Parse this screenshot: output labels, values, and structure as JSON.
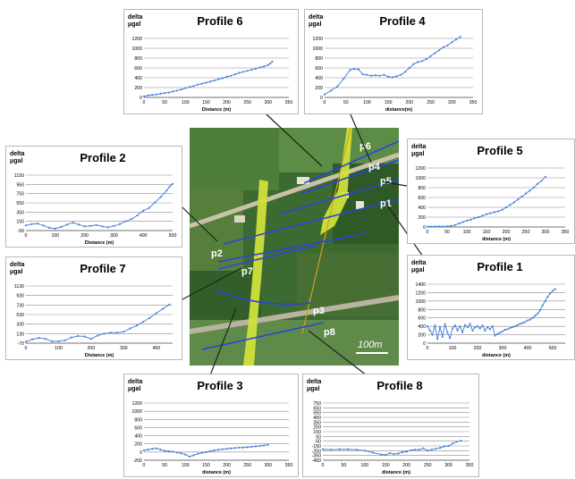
{
  "map": {
    "scale_label": "100m",
    "profile_labels": [
      "p6",
      "p4",
      "p5",
      "p1",
      "p2",
      "p7",
      "p3",
      "p8"
    ]
  },
  "chart_data": [
    {
      "id": "p6",
      "type": "line",
      "title": "Profile 6",
      "ylabel": "delta\nμgal",
      "xlabel": "Distance (m)",
      "xlim": [
        0,
        350
      ],
      "ylim": [
        0,
        1200
      ],
      "xticks": [
        0,
        50,
        100,
        150,
        200,
        250,
        300,
        350
      ],
      "yticks": [
        0,
        200,
        400,
        600,
        800,
        1000,
        1200
      ],
      "series": [
        {
          "x": [
            0,
            10,
            20,
            30,
            40,
            50,
            60,
            70,
            80,
            90,
            100,
            110,
            120,
            130,
            140,
            150,
            160,
            170,
            180,
            190,
            200,
            210,
            220,
            230,
            240,
            250,
            260,
            270,
            280,
            290,
            300,
            305,
            310
          ],
          "y": [
            20,
            40,
            50,
            60,
            75,
            90,
            100,
            120,
            140,
            160,
            190,
            210,
            230,
            260,
            280,
            300,
            320,
            345,
            370,
            390,
            420,
            440,
            470,
            500,
            520,
            540,
            560,
            585,
            610,
            630,
            660,
            690,
            730
          ]
        }
      ],
      "color": "#4a86d6"
    },
    {
      "id": "p4",
      "type": "line",
      "title": "Profile 4",
      "ylabel": "delta\nμgal",
      "xlabel": "distance(m)",
      "xlim": [
        0,
        350
      ],
      "ylim": [
        0,
        1200
      ],
      "xticks": [
        0,
        50,
        100,
        150,
        200,
        250,
        300,
        350
      ],
      "yticks": [
        0,
        200,
        400,
        600,
        800,
        1000,
        1200
      ],
      "series": [
        {
          "x": [
            0,
            15,
            30,
            45,
            60,
            70,
            80,
            90,
            100,
            110,
            120,
            130,
            140,
            150,
            160,
            170,
            180,
            190,
            200,
            210,
            220,
            230,
            240,
            250,
            260,
            270,
            280,
            290,
            300,
            310,
            320
          ],
          "y": [
            60,
            140,
            220,
            380,
            560,
            580,
            570,
            470,
            460,
            440,
            450,
            440,
            460,
            420,
            410,
            430,
            460,
            520,
            600,
            680,
            720,
            740,
            780,
            840,
            900,
            960,
            1020,
            1060,
            1120,
            1180,
            1230
          ]
        }
      ],
      "color": "#4a86d6"
    },
    {
      "id": "p5",
      "type": "line",
      "title": "Profile 5",
      "ylabel": "delta\nμgal",
      "xlabel": "distance (m)",
      "xlim": [
        0,
        350
      ],
      "ylim": [
        0,
        1200
      ],
      "xticks": [
        0,
        50,
        100,
        150,
        200,
        250,
        300,
        350
      ],
      "yticks": [
        0,
        200,
        400,
        600,
        800,
        1000,
        1200
      ],
      "series": [
        {
          "x": [
            0,
            10,
            20,
            30,
            40,
            50,
            60,
            70,
            80,
            90,
            100,
            110,
            120,
            130,
            140,
            150,
            160,
            170,
            180,
            190,
            200,
            210,
            220,
            230,
            240,
            250,
            260,
            270,
            280,
            290,
            300
          ],
          "y": [
            10,
            10,
            10,
            12,
            10,
            15,
            20,
            40,
            70,
            100,
            130,
            150,
            180,
            200,
            230,
            260,
            280,
            300,
            320,
            350,
            400,
            450,
            500,
            560,
            620,
            680,
            740,
            800,
            880,
            940,
            1020
          ]
        }
      ],
      "color": "#4a86d6"
    },
    {
      "id": "p2",
      "type": "line",
      "title": "Profile 2",
      "ylabel": "delta\nμgal",
      "xlabel": "Distance (m)",
      "xlim": [
        0,
        500
      ],
      "ylim": [
        -50,
        1150
      ],
      "xticks": [
        0,
        100,
        200,
        300,
        400,
        500
      ],
      "yticks": [
        -50,
        150,
        350,
        550,
        750,
        950,
        1150
      ],
      "series": [
        {
          "x": [
            0,
            20,
            40,
            60,
            80,
            100,
            120,
            140,
            160,
            180,
            200,
            220,
            240,
            260,
            280,
            300,
            320,
            340,
            360,
            380,
            400,
            420,
            440,
            460,
            480,
            490,
            500
          ],
          "y": [
            60,
            90,
            100,
            60,
            10,
            -10,
            30,
            80,
            120,
            80,
            40,
            50,
            70,
            40,
            20,
            50,
            90,
            150,
            200,
            280,
            380,
            440,
            560,
            680,
            820,
            900,
            960
          ]
        }
      ],
      "color": "#4a86d6"
    },
    {
      "id": "p7",
      "type": "line",
      "title": "Profile 7",
      "ylabel": "delta\nμgal",
      "xlabel": "Distance (m)",
      "xlim": [
        0,
        450
      ],
      "ylim": [
        -70,
        1130
      ],
      "xticks": [
        0,
        100,
        200,
        300,
        400
      ],
      "yticks": [
        -70,
        130,
        330,
        530,
        730,
        930,
        1130
      ],
      "series": [
        {
          "x": [
            0,
            20,
            40,
            60,
            80,
            100,
            120,
            140,
            160,
            180,
            200,
            220,
            240,
            260,
            280,
            300,
            320,
            340,
            360,
            380,
            400,
            420,
            440
          ],
          "y": [
            -40,
            10,
            40,
            20,
            -30,
            -30,
            -10,
            50,
            80,
            70,
            20,
            90,
            130,
            150,
            150,
            170,
            240,
            300,
            380,
            460,
            560,
            650,
            740
          ]
        }
      ],
      "color": "#4a86d6"
    },
    {
      "id": "p1",
      "type": "line",
      "title": "Profile 1",
      "ylabel": "delta\nμgal",
      "xlabel": "distance (m)",
      "xlim": [
        0,
        550
      ],
      "ylim": [
        0,
        1400
      ],
      "xticks": [
        0,
        100,
        200,
        300,
        400,
        500
      ],
      "yticks": [
        0,
        200,
        400,
        600,
        800,
        1000,
        1200,
        1400
      ],
      "series": [
        {
          "x": [
            0,
            10,
            20,
            30,
            40,
            50,
            60,
            70,
            80,
            90,
            100,
            110,
            120,
            130,
            140,
            150,
            160,
            170,
            180,
            190,
            200,
            210,
            220,
            230,
            240,
            250,
            260,
            270,
            280,
            290,
            300,
            310,
            320,
            330,
            340,
            350,
            360,
            370,
            380,
            390,
            400,
            410,
            420,
            430,
            440,
            450,
            460,
            470,
            480,
            490,
            500,
            510
          ],
          "y": [
            400,
            300,
            200,
            420,
            100,
            380,
            150,
            450,
            250,
            120,
            350,
            420,
            300,
            400,
            260,
            430,
            380,
            460,
            300,
            380,
            400,
            350,
            420,
            300,
            380,
            330,
            400,
            180,
            220,
            250,
            280,
            320,
            330,
            360,
            380,
            400,
            430,
            460,
            480,
            500,
            540,
            560,
            600,
            650,
            700,
            780,
            900,
            1000,
            1100,
            1180,
            1240,
            1280
          ]
        }
      ],
      "color": "#4a86d6"
    },
    {
      "id": "p3",
      "type": "line",
      "title": "Profile 3",
      "ylabel": "delta\nμgal",
      "xlabel": "distance (m)",
      "xlim": [
        0,
        350
      ],
      "ylim": [
        -200,
        1200
      ],
      "xticks": [
        0,
        50,
        100,
        150,
        200,
        250,
        300,
        350
      ],
      "yticks": [
        -200,
        0,
        200,
        400,
        600,
        800,
        1000,
        1200
      ],
      "series": [
        {
          "x": [
            0,
            10,
            20,
            30,
            40,
            50,
            60,
            70,
            80,
            90,
            100,
            110,
            120,
            130,
            140,
            150,
            160,
            170,
            180,
            190,
            200,
            210,
            220,
            230,
            240,
            250,
            260,
            270,
            280,
            290,
            300
          ],
          "y": [
            40,
            60,
            80,
            90,
            60,
            30,
            20,
            10,
            -10,
            -30,
            -60,
            -110,
            -80,
            -40,
            -20,
            0,
            20,
            40,
            60,
            70,
            80,
            90,
            100,
            110,
            110,
            120,
            130,
            140,
            150,
            160,
            180
          ]
        }
      ],
      "color": "#4a86d6"
    },
    {
      "id": "p8",
      "type": "line",
      "title": "Profile 8",
      "ylabel": "delta\nμgal",
      "xlabel": "distance (m)",
      "xlim": [
        0,
        350
      ],
      "ylim": [
        -450,
        750
      ],
      "xticks": [
        0,
        50,
        100,
        150,
        200,
        250,
        300,
        350
      ],
      "yticks": [
        -450,
        -350,
        -250,
        -150,
        -50,
        50,
        150,
        250,
        350,
        450,
        550,
        650,
        750
      ],
      "series": [
        {
          "x": [
            0,
            20,
            40,
            60,
            80,
            100,
            120,
            140,
            150,
            160,
            170,
            180,
            190,
            200,
            210,
            220,
            230,
            240,
            250,
            260,
            270,
            280,
            290,
            300,
            310,
            320,
            330
          ],
          "y": [
            -220,
            -230,
            -220,
            -220,
            -230,
            -250,
            -290,
            -330,
            -340,
            -300,
            -320,
            -310,
            -280,
            -270,
            -240,
            -230,
            -230,
            -200,
            -250,
            -230,
            -210,
            -190,
            -160,
            -150,
            -100,
            -60,
            -40
          ]
        }
      ],
      "color": "#4a86d6"
    }
  ]
}
